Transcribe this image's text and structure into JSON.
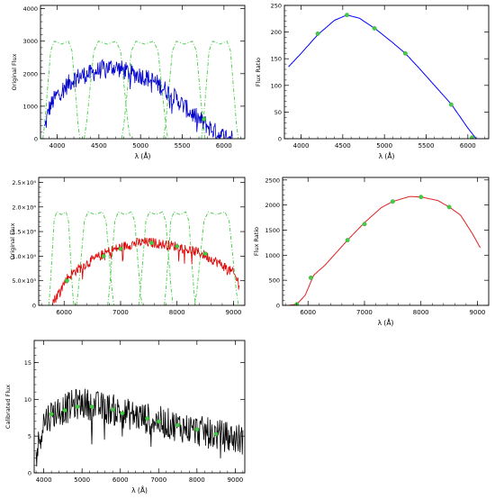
{
  "chart_data": [
    {
      "type": "line",
      "panel": "top-left",
      "ylabel": "Original Flux",
      "xlabel": "λ (Å)",
      "xlim": [
        3800,
        6250
      ],
      "ylim": [
        0,
        4100
      ],
      "xticks": [
        4000,
        4500,
        5000,
        5500,
        6000
      ],
      "yticks": [
        0,
        1000,
        2000,
        3000,
        4000
      ],
      "ytick_labels": [
        "0",
        "1000",
        "2000",
        "3000",
        "4000"
      ],
      "series": [
        {
          "kind": "spectrum",
          "color": "#0000cc",
          "noise": 0.07,
          "x": [
            3850,
            3900,
            3950,
            4000,
            4100,
            4200,
            4300,
            4400,
            4500,
            4600,
            4700,
            4800,
            4900,
            5000,
            5100,
            5200,
            5300,
            5400,
            5500,
            5600,
            5700,
            5800,
            5900,
            6000,
            6100
          ],
          "y": [
            300,
            900,
            1150,
            1350,
            1600,
            1850,
            1950,
            2000,
            2100,
            2200,
            2200,
            2100,
            2000,
            1950,
            1850,
            1700,
            1500,
            1300,
            1050,
            800,
            600,
            400,
            200,
            60,
            20
          ]
        }
      ],
      "filters": {
        "color": "#44cc44",
        "peak": 3000,
        "bands": [
          [
            3850,
            4250
          ],
          [
            4350,
            4850
          ],
          [
            4800,
            5300
          ],
          [
            5300,
            5750
          ],
          [
            5750,
            6150
          ]
        ]
      },
      "markers": {
        "color": "#44cc44",
        "x": [
          5760
        ],
        "y": [
          600
        ]
      }
    },
    {
      "type": "line",
      "panel": "top-right",
      "ylabel": "Flux Ratio",
      "xlabel": "λ (Å)",
      "xlim": [
        3800,
        6250
      ],
      "ylim": [
        0,
        250
      ],
      "xticks": [
        4000,
        4500,
        5000,
        5500,
        6000
      ],
      "yticks": [
        0,
        50,
        100,
        150,
        200,
        250
      ],
      "ytick_labels": [
        "0",
        "50",
        "100",
        "150",
        "200",
        "250"
      ],
      "series": [
        {
          "kind": "curve",
          "color": "#0000ff",
          "x": [
            3850,
            4000,
            4200,
            4400,
            4550,
            4700,
            4900,
            5100,
            5250,
            5400,
            5600,
            5800,
            6000,
            6100,
            6250
          ],
          "y": [
            135,
            160,
            195,
            222,
            232,
            226,
            205,
            180,
            160,
            135,
            100,
            65,
            20,
            0,
            0
          ]
        }
      ],
      "markers": {
        "color": "#44cc44",
        "x": [
          4200,
          4550,
          4880,
          5250,
          5800,
          6050
        ],
        "y": [
          197,
          232,
          207,
          160,
          64,
          2
        ]
      }
    },
    {
      "type": "line",
      "panel": "middle-left",
      "ylabel": "Original Flux",
      "xlabel": "",
      "xlim": [
        5550,
        9200
      ],
      "ylim": [
        0,
        26000
      ],
      "xticks": [
        6000,
        7000,
        8000,
        9000
      ],
      "yticks": [
        0,
        5000,
        10000,
        15000,
        20000,
        25000
      ],
      "ytick_labels": [
        "0",
        "5.0×10³",
        "1.0×10⁴",
        "1.5×10⁴",
        "2.0×10⁴",
        "2.5×10⁴"
      ],
      "series": [
        {
          "kind": "spectrum",
          "color": "#dd0000",
          "noise": 0.04,
          "x": [
            5750,
            5850,
            5950,
            6050,
            6200,
            6400,
            6600,
            6800,
            7000,
            7200,
            7400,
            7600,
            7800,
            8000,
            8200,
            8400,
            8600,
            8800,
            9000,
            9100
          ],
          "y": [
            0,
            1500,
            3500,
            5500,
            7000,
            8500,
            9800,
            11000,
            11800,
            12500,
            12800,
            12700,
            12300,
            12000,
            11300,
            10700,
            9500,
            8200,
            6500,
            4500
          ]
        }
      ],
      "filters": {
        "color": "#44cc44",
        "peak": 19000,
        "bands": [
          [
            5750,
            6150
          ],
          [
            6250,
            6850
          ],
          [
            6800,
            7350
          ],
          [
            7350,
            7900
          ],
          [
            7800,
            8300
          ],
          [
            8350,
            9050
          ]
        ]
      },
      "markers": {
        "color": "#44cc44",
        "x": [
          6050,
          6700,
          7000,
          7550,
          8000,
          8500
        ],
        "y": [
          5000,
          10000,
          11500,
          12700,
          12000,
          10500
        ]
      }
    },
    {
      "type": "line",
      "panel": "middle-right",
      "ylabel": "Flux Ratio",
      "xlabel": "λ (Å)",
      "xlim": [
        5550,
        9200
      ],
      "ylim": [
        0,
        2550
      ],
      "xticks": [
        6000,
        7000,
        8000,
        9000
      ],
      "yticks": [
        0,
        500,
        1000,
        1500,
        2000,
        2500
      ],
      "ytick_labels": [
        "0",
        "500",
        "1000",
        "1500",
        "2000",
        "2500"
      ],
      "series": [
        {
          "kind": "curve",
          "color": "#dd2222",
          "x": [
            5650,
            5800,
            5950,
            6100,
            6300,
            6500,
            6700,
            7000,
            7300,
            7500,
            7800,
            8000,
            8300,
            8500,
            8700,
            8900,
            9050
          ],
          "y": [
            0,
            20,
            200,
            600,
            800,
            1050,
            1300,
            1650,
            1950,
            2070,
            2170,
            2160,
            2090,
            1960,
            1800,
            1450,
            1150
          ]
        }
      ],
      "markers": {
        "color": "#44cc44",
        "x": [
          5800,
          6050,
          6700,
          7000,
          7500,
          8000,
          8500
        ],
        "y": [
          20,
          550,
          1300,
          1620,
          2070,
          2160,
          1960
        ]
      }
    },
    {
      "type": "line",
      "panel": "bottom-left",
      "ylabel": "Calibrated Flux",
      "xlabel": "λ (Å)",
      "xlim": [
        3750,
        9250
      ],
      "ylim": [
        0,
        18
      ],
      "xticks": [
        4000,
        5000,
        6000,
        7000,
        8000,
        9000
      ],
      "yticks": [
        0,
        5,
        10,
        15
      ],
      "ytick_labels": [
        "0",
        "5",
        "10",
        "15"
      ],
      "series": [
        {
          "kind": "spectrum",
          "color": "#000000",
          "noise": 0.12,
          "x": [
            3800,
            3900,
            4000,
            4200,
            4400,
            4600,
            4800,
            5000,
            5200,
            5400,
            5600,
            5800,
            6000,
            6200,
            6600,
            7000,
            7400,
            7800,
            8200,
            8600,
            9000,
            9200
          ],
          "y": [
            2,
            5,
            7,
            8,
            8.5,
            8.8,
            9.3,
            9.5,
            9.3,
            9.0,
            8.8,
            8.6,
            8.2,
            8.0,
            7.5,
            7.0,
            6.5,
            6.0,
            5.5,
            5.1,
            4.7,
            4.5
          ]
        }
      ],
      "markers": {
        "color": "#44cc44",
        "x": [
          4200,
          4550,
          4880,
          5250,
          5800,
          6050,
          6700,
          7000,
          7500,
          8000,
          8500
        ],
        "y": [
          8,
          8.5,
          9,
          9,
          8.6,
          8.1,
          7.4,
          7,
          6.5,
          5.9,
          5.3
        ]
      }
    }
  ]
}
